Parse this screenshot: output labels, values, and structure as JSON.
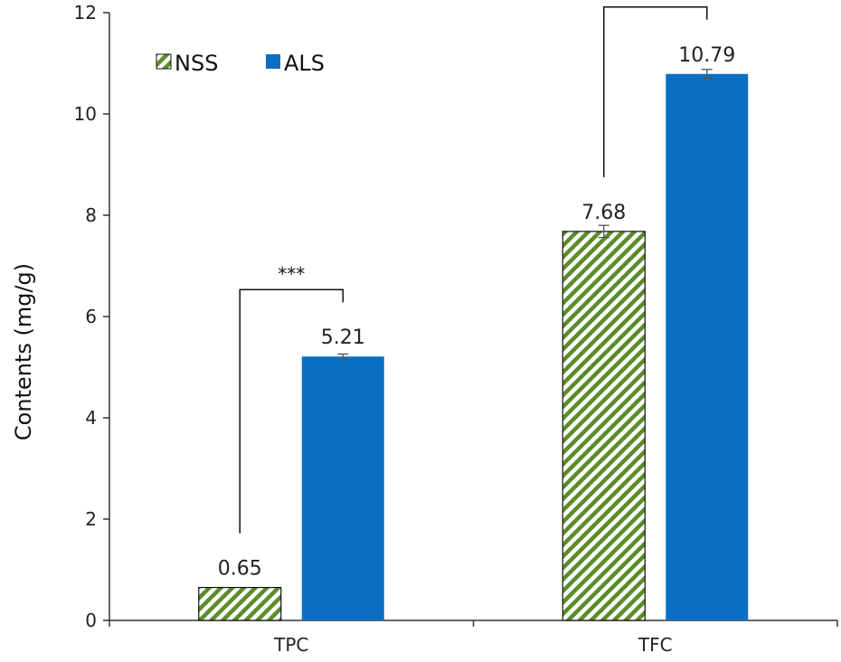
{
  "chart_data": {
    "type": "bar",
    "ylabel": "Contents (mg/g)",
    "ylim": [
      0,
      12
    ],
    "yticks": [
      0,
      2,
      4,
      6,
      8,
      10,
      12
    ],
    "categories": [
      "TPC",
      "TFC"
    ],
    "series": [
      {
        "name": "NSS",
        "values": [
          0.65,
          7.68
        ],
        "value_labels": [
          "0.65",
          "7.68"
        ],
        "errors": [
          0,
          0.12
        ],
        "pattern": "diagonal-stripes",
        "color": "#5B8C2A"
      },
      {
        "name": "ALS",
        "values": [
          5.21,
          10.79
        ],
        "value_labels": [
          "5.21",
          "10.79"
        ],
        "errors": [
          0.05,
          0.09
        ],
        "pattern": "solid",
        "color": "#0A6FC2"
      }
    ],
    "significance": [
      {
        "category": "TPC",
        "label": "***"
      },
      {
        "category": "TFC",
        "label": "***"
      }
    ],
    "legend_position": "top-left",
    "grid": false
  }
}
